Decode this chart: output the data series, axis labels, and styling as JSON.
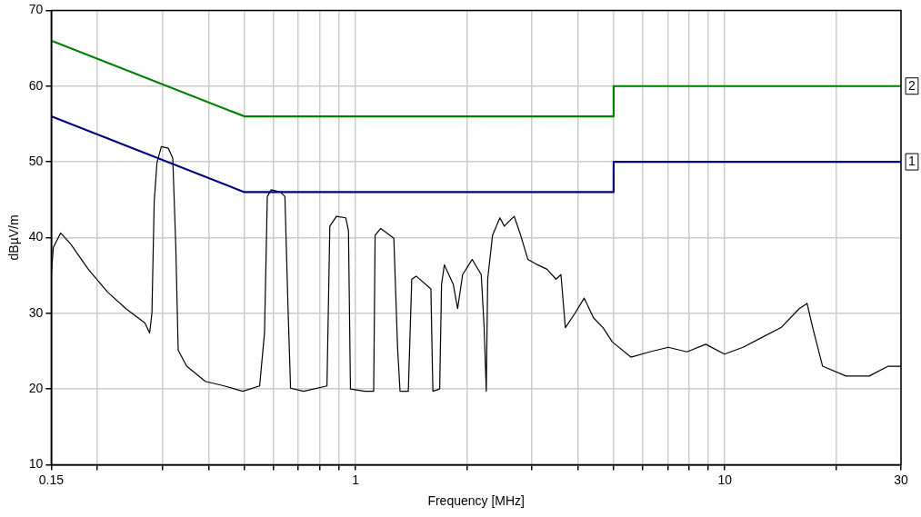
{
  "chart_data": {
    "type": "line",
    "xlabel": "Frequency [MHz]",
    "ylabel": "dBµV/m",
    "log": "x",
    "grid": true,
    "legend": false,
    "marker": "none",
    "line_style": "solid",
    "xlim": [
      0.15,
      30
    ],
    "ylim": [
      10,
      70
    ],
    "xticks": [
      0.15,
      {
        "value": 0.2,
        "label": null
      },
      {
        "value": 0.3,
        "label": null
      },
      {
        "value": 0.4,
        "label": null
      },
      {
        "value": 0.5,
        "label": null
      },
      {
        "value": 0.6,
        "label": null
      },
      {
        "value": 0.7,
        "label": null
      },
      {
        "value": 0.8,
        "label": null
      },
      {
        "value": 0.9,
        "label": null
      },
      1,
      {
        "value": 2,
        "label": null
      },
      {
        "value": 3,
        "label": null
      },
      {
        "value": 4,
        "label": null
      },
      {
        "value": 5,
        "label": null
      },
      {
        "value": 6,
        "label": null
      },
      {
        "value": 7,
        "label": null
      },
      {
        "value": 8,
        "label": null
      },
      {
        "value": 9,
        "label": null
      },
      10,
      {
        "value": 20,
        "label": null
      },
      30
    ],
    "yticks": [
      10,
      20,
      30,
      40,
      50,
      60,
      70
    ],
    "series": [
      {
        "color": "#008000",
        "x": [
          0.15,
          0.5,
          5,
          5,
          30
        ],
        "values": [
          66,
          56,
          56,
          60,
          60
        ]
      },
      {
        "color": "#000080",
        "x": [
          0.15,
          0.5,
          5,
          5,
          30
        ],
        "values": [
          56,
          46,
          46,
          50,
          50
        ]
      },
      {
        "color": "#000000",
        "x": [
          0.15,
          0.152,
          0.159,
          0.169,
          0.189,
          0.213,
          0.239,
          0.269,
          0.277,
          0.281,
          0.285,
          0.29,
          0.298,
          0.311,
          0.32,
          0.326,
          0.331,
          0.349,
          0.392,
          0.441,
          0.495,
          0.55,
          0.567,
          0.577,
          0.591,
          0.626,
          0.644,
          0.656,
          0.667,
          0.724,
          0.837,
          0.852,
          0.888,
          0.941,
          0.957,
          0.969,
          1.06,
          1.12,
          1.13,
          1.17,
          1.27,
          1.3,
          1.32,
          1.39,
          1.42,
          1.46,
          1.6,
          1.62,
          1.69,
          1.71,
          1.74,
          1.84,
          1.89,
          1.95,
          2.07,
          2.19,
          2.23,
          2.26,
          2.28,
          2.35,
          2.46,
          2.53,
          2.61,
          2.69,
          2.8,
          2.93,
          3.11,
          3.3,
          3.49,
          3.6,
          3.7,
          3.93,
          4.16,
          4.41,
          4.68,
          4.96,
          5.57,
          6.26,
          7.03,
          7.9,
          8.88,
          9.98,
          11.2,
          12.6,
          14.2,
          15.9,
          16.7,
          17.3,
          18.4,
          21.3,
          24.6,
          27.7,
          30
        ],
        "values": [
          35.1,
          38.7,
          40.6,
          39.2,
          35.8,
          32.8,
          30.6,
          28.7,
          27.4,
          30,
          44.7,
          49.9,
          52,
          51.8,
          50.5,
          39,
          25.1,
          23,
          21,
          20.4,
          19.7,
          20.4,
          27.4,
          45.4,
          46.3,
          46,
          45.4,
          31.3,
          20.1,
          19.7,
          20.4,
          41.5,
          42.8,
          42.6,
          40.9,
          20,
          19.7,
          19.7,
          40.3,
          41.2,
          39.9,
          25.4,
          19.7,
          19.7,
          34.5,
          34.9,
          33.2,
          19.7,
          20,
          33.8,
          36.4,
          33.8,
          30.6,
          35.1,
          37.1,
          35.1,
          28.1,
          19.7,
          34.5,
          40.3,
          42.6,
          41.5,
          42.2,
          42.8,
          40.3,
          37.1,
          36.4,
          35.8,
          34.5,
          35.1,
          28.1,
          30,
          32,
          29.4,
          28.1,
          26.2,
          24.2,
          24.9,
          25.5,
          24.9,
          25.9,
          24.6,
          25.5,
          26.8,
          28.1,
          30.6,
          31.3,
          28.1,
          23,
          21.7,
          21.7,
          23,
          23
        ]
      }
    ],
    "annotations": [
      {
        "text": "2",
        "x": 30,
        "y": 60
      },
      {
        "text": "1",
        "x": 30,
        "y": 50
      }
    ]
  }
}
